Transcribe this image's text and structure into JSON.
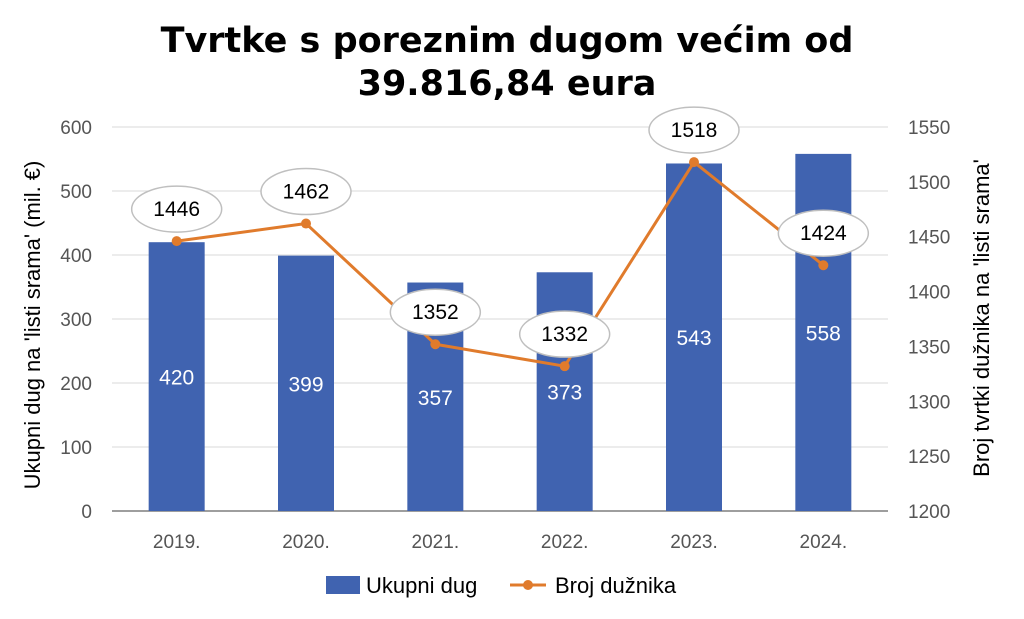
{
  "chart_data": {
    "type": "bar",
    "title_lines": [
      "Tvrtke s poreznim dugom većim od",
      "39.816,84 eura"
    ],
    "categories": [
      "2019.",
      "2020.",
      "2021.",
      "2022.",
      "2023.",
      "2024."
    ],
    "series": [
      {
        "name": "Ukupni dug",
        "type": "bar",
        "axis": "left",
        "color": "#4063b0",
        "values": [
          420,
          399,
          357,
          373,
          543,
          558
        ],
        "labels": [
          "420",
          "399",
          "357",
          "373",
          "543",
          "558"
        ]
      },
      {
        "name": "Broj dužnika",
        "type": "line",
        "axis": "right",
        "color": "#e07b2c",
        "values": [
          1446,
          1462,
          1352,
          1332,
          1518,
          1424
        ],
        "labels": [
          "1446",
          "1462",
          "1352",
          "1332",
          "1518",
          "1424"
        ]
      }
    ],
    "ylabel_left": "Ukupni  dug na 'listi srama'  (mil. €)",
    "ylabel_right": "Broj tvrtki dužnika na 'listi srama'",
    "ylim_left": [
      0,
      600
    ],
    "yticks_left": [
      "0",
      "100",
      "200",
      "300",
      "400",
      "500",
      "600"
    ],
    "ylim_right": [
      1200,
      1550
    ],
    "yticks_right": [
      "1200",
      "1250",
      "1300",
      "1350",
      "1400",
      "1450",
      "1500",
      "1550"
    ],
    "grid": true,
    "legend_position": "bottom"
  }
}
